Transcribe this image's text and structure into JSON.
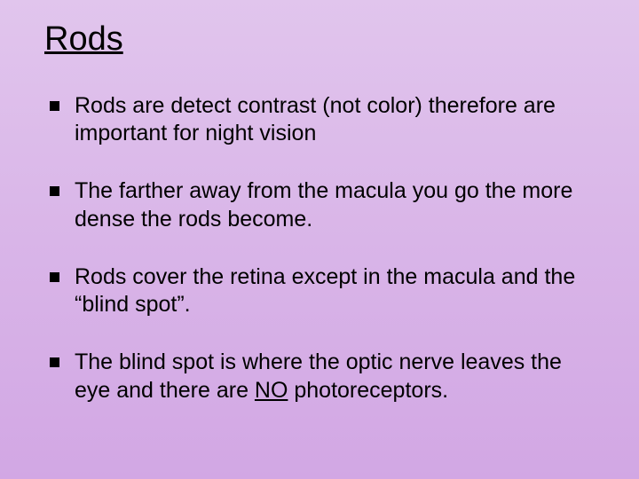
{
  "slide": {
    "title": "Rods",
    "bullets": [
      {
        "text": "Rods are detect contrast (not color) therefore are important for night vision"
      },
      {
        "text": "The farther away from the macula you go the more dense the rods become."
      },
      {
        "text": "Rods cover the retina except in the macula and the “blind spot”."
      },
      {
        "prefix": "The blind spot is where the optic nerve leaves the eye and there are ",
        "underlined": "NO",
        "suffix": " photoreceptors."
      }
    ],
    "colors": {
      "text": "#000000",
      "bg_top": "#e1c5ed",
      "bg_bottom": "#d2a7e4"
    },
    "typography": {
      "title_fontsize": 38,
      "body_fontsize": 25,
      "font_family": "Arial"
    }
  }
}
